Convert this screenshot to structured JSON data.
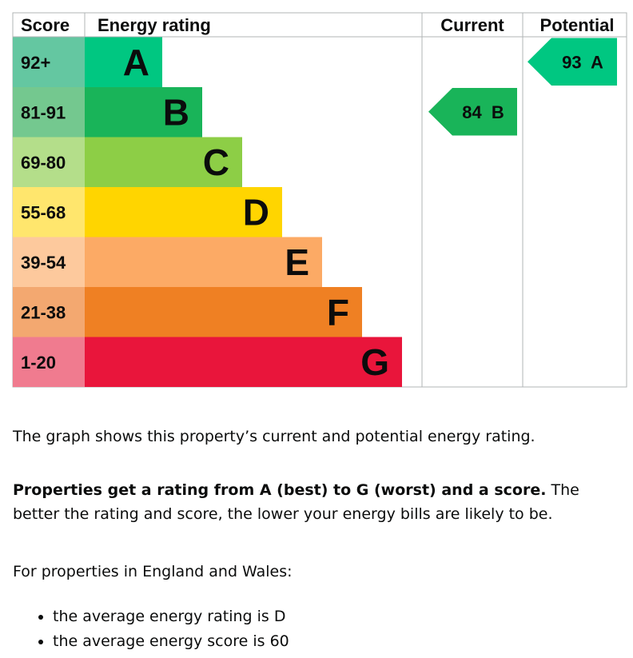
{
  "chart_data": {
    "type": "bar",
    "headers": {
      "score": "Score",
      "rating": "Energy rating",
      "current": "Current",
      "potential": "Potential"
    },
    "bands": [
      {
        "letter": "A",
        "range": "92+",
        "color": "#00c781",
        "score_color": "#64c7a1"
      },
      {
        "letter": "B",
        "range": "81-91",
        "color": "#19b459",
        "score_color": "#74c88f"
      },
      {
        "letter": "C",
        "range": "69-80",
        "color": "#8dce46",
        "score_color": "#b4de8a"
      },
      {
        "letter": "D",
        "range": "55-68",
        "color": "#ffd500",
        "score_color": "#ffe66d"
      },
      {
        "letter": "E",
        "range": "39-54",
        "color": "#fcaa65",
        "score_color": "#fdc99d"
      },
      {
        "letter": "F",
        "range": "21-38",
        "color": "#ef8023",
        "score_color": "#f3a870"
      },
      {
        "letter": "G",
        "range": "1-20",
        "color": "#e9153b",
        "score_color": "#f07b8f"
      }
    ],
    "current": {
      "score": 84,
      "band": "B",
      "label": "84  B",
      "color": "#19b459"
    },
    "potential": {
      "score": 93,
      "band": "A",
      "label": "93  A",
      "color": "#00c781"
    }
  },
  "text": {
    "p1": "The graph shows this property’s current and potential energy rating.",
    "p2_bold": "Properties get a rating from A (best) to G (worst) and a score.",
    "p2_rest": " The better the rating and score, the lower your energy bills are likely to be.",
    "p3": "For properties in England and Wales:",
    "bullets": [
      "the average energy rating is D",
      "the average energy score is 60"
    ]
  }
}
